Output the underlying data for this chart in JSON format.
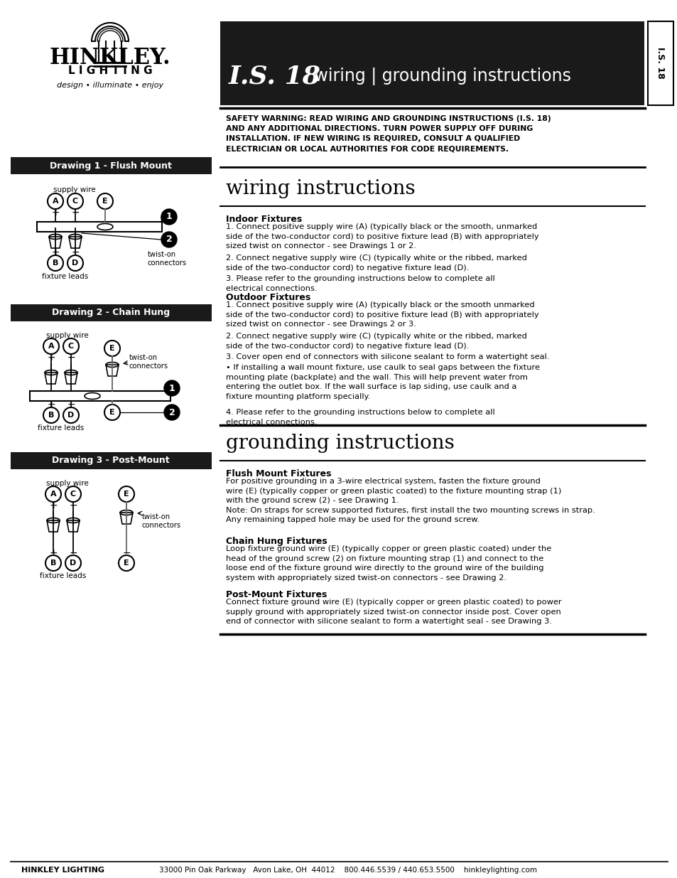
{
  "bg_color": "#ffffff",
  "header_bg": "#1a1a1a",
  "header_text_color": "#ffffff",
  "title_bold": "I.S. 18",
  "title_rest": " wiring | grounding instructions",
  "sidebar_text": "I.S. 18",
  "logo_text_hinkley": "HINKLEY.",
  "logo_text_lighting": "L I G H T I N G",
  "logo_tagline": "design • illuminate • enjoy",
  "safety_warning": "SAFETY WARNING: READ WIRING AND GROUNDING INSTRUCTIONS (I.S. 18)\nAND ANY ADDITIONAL DIRECTIONS. TURN POWER SUPPLY OFF DURING\nINSTALLATION. IF NEW WIRING IS REQUIRED, CONSULT A QUALIFIED\nELECTRICIAN OR LOCAL AUTHORITIES FOR CODE REQUIREMENTS.",
  "wiring_title": "wiring instructions",
  "indoor_fixtures_title": "Indoor Fixtures",
  "indoor_text_1": "1. Connect positive supply wire (A) (typically black or the smooth, unmarked\nside of the two-conductor cord) to positive fixture lead (B) with appropriately\nsized twist on connector - see Drawings 1 or 2.",
  "indoor_text_2": "2. Connect negative supply wire (C) (typically white or the ribbed, marked\nside of the two-conductor cord) to negative fixture lead (D).",
  "indoor_text_3": "3. Please refer to the grounding instructions below to complete all\nelectrical connections.",
  "outdoor_fixtures_title": "Outdoor Fixtures",
  "outdoor_text_1": "1. Connect positive supply wire (A) (typically black or the smooth unmarked\nside of the two-conductor cord) to positive fixture lead (B) with appropriately\nsized twist on connector - see Drawings 2 or 3.",
  "outdoor_text_2": "2. Connect negative supply wire (C) (typically white or the ribbed, marked\nside of the two-conductor cord) to negative fixture lead (D).",
  "outdoor_text_3": "3. Cover open end of connectors with silicone sealant to form a watertight seal.",
  "outdoor_text_bullet": "• If installing a wall mount fixture, use caulk to seal gaps between the fixture\nmounting plate (backplate) and the wall. This will help prevent water from\nentering the outlet box. If the wall surface is lap siding, use caulk and a\nfixture mounting platform specially.",
  "outdoor_text_4": "4. Please refer to the grounding instructions below to complete all\nelectrical connections.",
  "grounding_title": "grounding instructions",
  "flush_title": "Flush Mount Fixtures",
  "flush_text": "For positive grounding in a 3-wire electrical system, fasten the fixture ground\nwire (E) (typically copper or green plastic coated) to the fixture mounting strap (1)\nwith the ground screw (2) - see Drawing 1.\nNote: On straps for screw supported fixtures, first install the two mounting screws in strap.\nAny remaining tapped hole may be used for the ground screw.",
  "chain_title": "Chain Hung Fixtures",
  "chain_text": "Loop fixture ground wire (E) (typically copper or green plastic coated) under the\nhead of the ground screw (2) on fixture mounting strap (1) and connect to the\nloose end of the fixture ground wire directly to the ground wire of the building\nsystem with appropriately sized twist-on connectors - see Drawing 2.",
  "post_title": "Post-Mount Fixtures",
  "post_text": "Connect fixture ground wire (E) (typically copper or green plastic coated) to power\nsupply ground with appropriately sized twist-on connector inside post. Cover open\nend of connector with silicone sealant to form a watertight seal - see Drawing 3.",
  "footer_company": "HINKLEY LIGHTING",
  "footer_address": "33000 Pin Oak Parkway   Avon Lake, OH  44012    800.446.5539 / 440.653.5500    hinkleylighting.com",
  "drawing1_title": "Drawing 1 - Flush Mount",
  "drawing2_title": "Drawing 2 - Chain Hung",
  "drawing3_title": "Drawing 3 - Post-Mount"
}
